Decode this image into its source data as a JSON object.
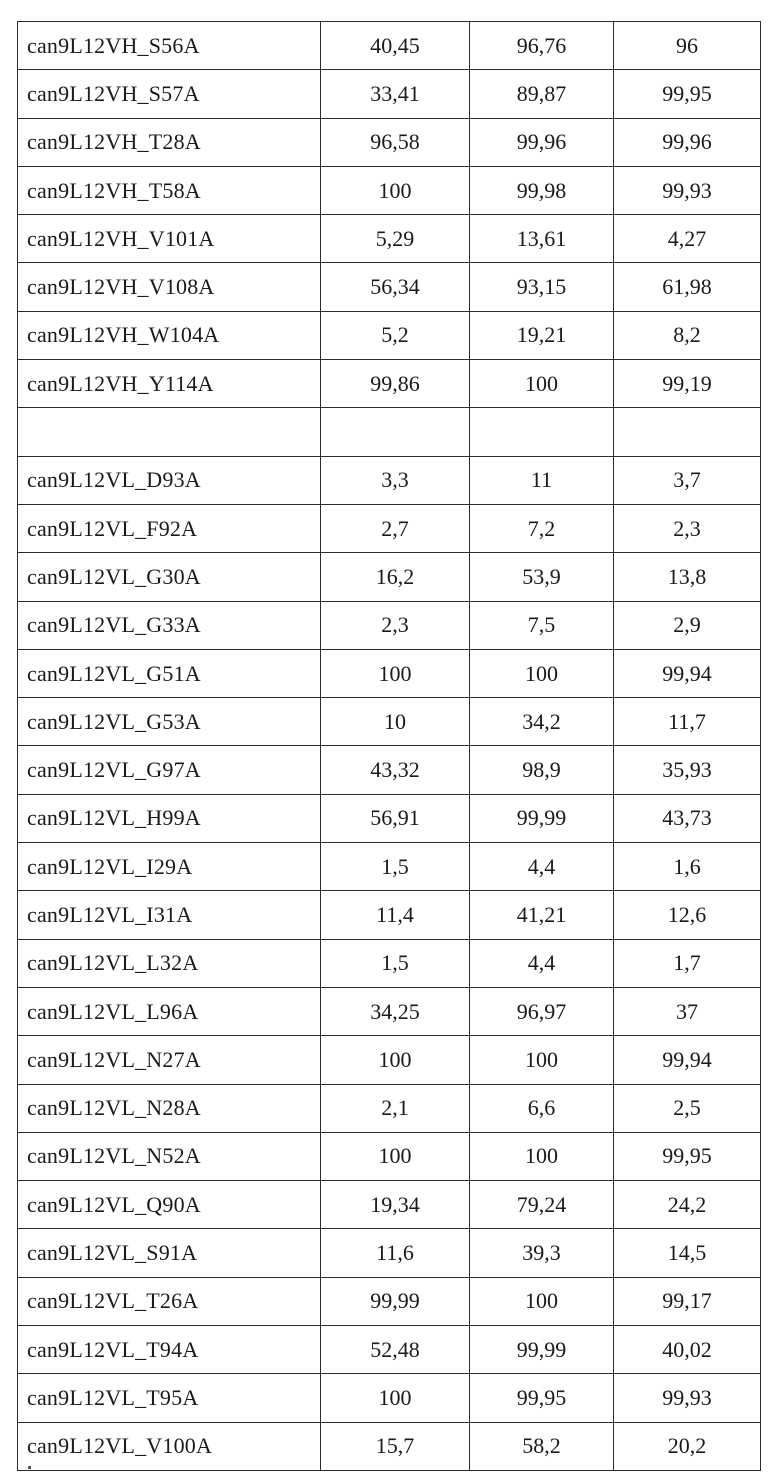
{
  "table": {
    "rows": [
      [
        "can9L12VH_S56A",
        "40,45",
        "96,76",
        "96"
      ],
      [
        "can9L12VH_S57A",
        "33,41",
        "89,87",
        "99,95"
      ],
      [
        "can9L12VH_T28A",
        "96,58",
        "99,96",
        "99,96"
      ],
      [
        "can9L12VH_T58A",
        "100",
        "99,98",
        "99,93"
      ],
      [
        "can9L12VH_V101A",
        "5,29",
        "13,61",
        "4,27"
      ],
      [
        "can9L12VH_V108A",
        "56,34",
        "93,15",
        "61,98"
      ],
      [
        "can9L12VH_W104A",
        "5,2",
        "19,21",
        "8,2"
      ],
      [
        "can9L12VH_Y114A",
        "99,86",
        "100",
        "99,19"
      ],
      [
        "",
        "",
        "",
        ""
      ],
      [
        "can9L12VL_D93A",
        "3,3",
        "11",
        "3,7"
      ],
      [
        "can9L12VL_F92A",
        "2,7",
        "7,2",
        "2,3"
      ],
      [
        "can9L12VL_G30A",
        "16,2",
        "53,9",
        "13,8"
      ],
      [
        "can9L12VL_G33A",
        "2,3",
        "7,5",
        "2,9"
      ],
      [
        "can9L12VL_G51A",
        "100",
        "100",
        "99,94"
      ],
      [
        "can9L12VL_G53A",
        "10",
        "34,2",
        "11,7"
      ],
      [
        "can9L12VL_G97A",
        "43,32",
        "98,9",
        "35,93"
      ],
      [
        "can9L12VL_H99A",
        "56,91",
        "99,99",
        "43,73"
      ],
      [
        "can9L12VL_I29A",
        "1,5",
        "4,4",
        "1,6"
      ],
      [
        "can9L12VL_I31A",
        "11,4",
        "41,21",
        "12,6"
      ],
      [
        "can9L12VL_L32A",
        "1,5",
        "4,4",
        "1,7"
      ],
      [
        "can9L12VL_L96A",
        "34,25",
        "96,97",
        "37"
      ],
      [
        "can9L12VL_N27A",
        "100",
        "100",
        "99,94"
      ],
      [
        "can9L12VL_N28A",
        "2,1",
        "6,6",
        "2,5"
      ],
      [
        "can9L12VL_N52A",
        "100",
        "100",
        "99,95"
      ],
      [
        "can9L12VL_Q90A",
        "19,34",
        "79,24",
        "24,2"
      ],
      [
        "can9L12VL_S91A",
        "11,6",
        "39,3",
        "14,5"
      ],
      [
        "can9L12VL_T26A",
        "99,99",
        "100",
        "99,17"
      ],
      [
        "can9L12VL_T94A",
        "52,48",
        "99,99",
        "40,02"
      ],
      [
        "can9L12VL_T95A",
        "100",
        "99,95",
        "99,93"
      ],
      [
        "can9L12VL_V100A",
        "15,7",
        "58,2",
        "20,2"
      ]
    ]
  }
}
